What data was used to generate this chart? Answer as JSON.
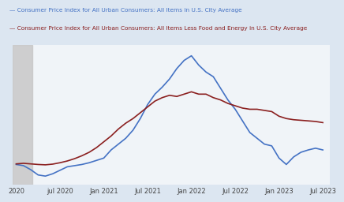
{
  "title_line1": "— Consumer Price Index for All Urban Consumers: All Items in U.S. City Average",
  "title_line2": "— Consumer Price Index for All Urban Consumers: All Items Less Food and Energy in U.S. City Average",
  "color_all_items": "#4472c4",
  "color_core": "#8b2020",
  "background_color": "#dce6f1",
  "plot_bg_color": "#f0f4f8",
  "shade_color": "#c8c8c8",
  "xtick_labels": [
    "2020",
    "jul 2020",
    "Jan 2021",
    "Jul 2021",
    "Jan 2022",
    "Jul 2022",
    "Jan 2023",
    "Jul 2023"
  ],
  "xtick_positions": [
    0,
    6,
    12,
    18,
    24,
    30,
    36,
    42
  ],
  "ylim": [
    -15,
    105
  ],
  "xlim": [
    -0.5,
    43
  ],
  "all_items_yoy": [
    2.5,
    1.5,
    -2.0,
    -6.5,
    -7.5,
    -5.5,
    -2.5,
    0.5,
    1.5,
    2.5,
    4.0,
    6.0,
    8.0,
    15.0,
    20.0,
    25.0,
    32.0,
    42.0,
    54.0,
    63.0,
    69.0,
    76.0,
    85.0,
    92.0,
    96.0,
    88.0,
    82.0,
    78.0,
    68.0,
    58.0,
    50.0,
    40.0,
    30.0,
    25.0,
    20.0,
    18.5,
    8.0,
    2.5,
    9.0,
    13.0,
    15.0,
    16.5,
    15.0
  ],
  "core_yoy": [
    3.0,
    3.5,
    3.0,
    2.5,
    2.2,
    2.8,
    4.0,
    5.5,
    7.5,
    10.0,
    13.0,
    17.0,
    22.0,
    27.0,
    33.0,
    38.0,
    42.0,
    47.0,
    52.0,
    57.0,
    60.0,
    62.0,
    61.0,
    63.0,
    65.0,
    63.0,
    63.0,
    60.0,
    58.0,
    55.0,
    53.0,
    51.0,
    50.0,
    50.0,
    49.0,
    48.0,
    44.0,
    42.0,
    41.0,
    40.5,
    40.0,
    39.5,
    38.5
  ],
  "shade_xmin": -0.5,
  "shade_xmax": 2.2
}
